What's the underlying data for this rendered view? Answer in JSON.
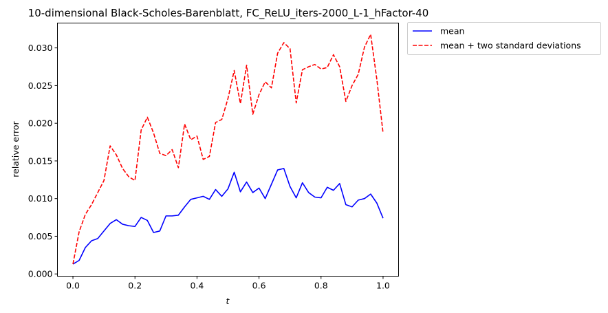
{
  "chart_data": {
    "type": "line",
    "title": "10-dimensional Black-Scholes-Barenblatt, FC_ReLU_iters-2000_L-1_hFactor-40",
    "xlabel": "t",
    "ylabel": "relative error",
    "xlim": [
      -0.05,
      1.05
    ],
    "ylim": [
      -0.0003,
      0.0333
    ],
    "xticks": [
      0.0,
      0.2,
      0.4,
      0.6,
      0.8,
      1.0
    ],
    "xtick_labels": [
      "0.0",
      "0.2",
      "0.4",
      "0.6",
      "0.8",
      "1.0"
    ],
    "yticks": [
      0.0,
      0.005,
      0.01,
      0.015,
      0.02,
      0.025,
      0.03
    ],
    "ytick_labels": [
      "0.000",
      "0.005",
      "0.010",
      "0.015",
      "0.020",
      "0.025",
      "0.030"
    ],
    "grid": false,
    "legend_placement": "outside-top-right",
    "x": [
      0.0,
      0.02,
      0.04,
      0.06,
      0.08,
      0.1,
      0.12,
      0.14,
      0.16,
      0.18,
      0.2,
      0.22,
      0.24,
      0.26,
      0.28,
      0.3,
      0.32,
      0.34,
      0.36,
      0.38,
      0.4,
      0.42,
      0.44,
      0.46,
      0.48,
      0.5,
      0.52,
      0.54,
      0.56,
      0.58,
      0.6,
      0.62,
      0.64,
      0.66,
      0.68,
      0.7,
      0.72,
      0.74,
      0.76,
      0.78,
      0.8,
      0.82,
      0.84,
      0.86,
      0.88,
      0.9,
      0.92,
      0.94,
      0.96,
      0.98,
      1.0
    ],
    "series": [
      {
        "name": "mean",
        "color": "#0000ff",
        "dash": "solid",
        "values": [
          0.0013,
          0.0018,
          0.0035,
          0.0044,
          0.0047,
          0.0057,
          0.0067,
          0.0072,
          0.0066,
          0.0064,
          0.0063,
          0.0075,
          0.0071,
          0.0055,
          0.0057,
          0.0077,
          0.0077,
          0.0078,
          0.0089,
          0.0099,
          0.0101,
          0.0103,
          0.0099,
          0.0112,
          0.0103,
          0.0113,
          0.0135,
          0.0109,
          0.0122,
          0.0108,
          0.0114,
          0.01,
          0.0119,
          0.0138,
          0.014,
          0.0116,
          0.0101,
          0.0121,
          0.0108,
          0.0102,
          0.0101,
          0.0115,
          0.0111,
          0.012,
          0.0092,
          0.0089,
          0.0098,
          0.01,
          0.0106,
          0.0094,
          0.0074
        ]
      },
      {
        "name": "mean + two standard deviations",
        "color": "#ff0000",
        "dash": "dashed",
        "values": [
          0.0013,
          0.0056,
          0.0079,
          0.0092,
          0.0108,
          0.0124,
          0.017,
          0.0158,
          0.014,
          0.0129,
          0.0124,
          0.0191,
          0.0208,
          0.0187,
          0.016,
          0.0157,
          0.0165,
          0.0141,
          0.0199,
          0.0178,
          0.0183,
          0.0152,
          0.0156,
          0.0201,
          0.0205,
          0.0233,
          0.027,
          0.0226,
          0.0277,
          0.0212,
          0.0238,
          0.0255,
          0.0247,
          0.0293,
          0.0307,
          0.0299,
          0.0227,
          0.0271,
          0.0275,
          0.0278,
          0.0272,
          0.0274,
          0.0291,
          0.0275,
          0.0229,
          0.025,
          0.0265,
          0.0301,
          0.0318,
          0.0258,
          0.0187
        ]
      }
    ]
  }
}
